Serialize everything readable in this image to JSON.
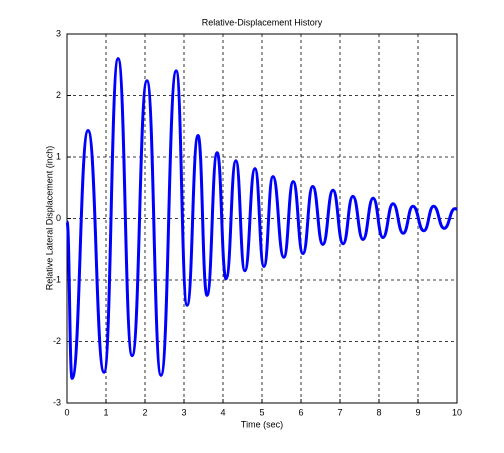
{
  "chart_data": {
    "type": "line",
    "title": "Relative-Displacement History",
    "x_label": "Time (sec)",
    "y_label": "Relative Lateral Displacement (inch)",
    "xlim": [
      0,
      10
    ],
    "xticks": [
      0,
      1,
      2,
      3,
      4,
      5,
      6,
      7,
      8,
      9,
      10
    ],
    "ylim": [
      -3,
      3
    ],
    "yticks": [
      -3,
      -2,
      -1,
      0,
      1,
      2,
      3
    ],
    "grid": true,
    "series": [
      {
        "color": "#0000ff",
        "x": [
          0,
          0.13,
          0.54,
          0.95,
          1.31,
          1.67,
          2.05,
          2.41,
          2.8,
          3.08,
          3.36,
          3.59,
          3.85,
          4.08,
          4.33,
          4.56,
          4.82,
          5.05,
          5.28,
          5.56,
          5.8,
          6.05,
          6.3,
          6.56,
          6.82,
          7.08,
          7.33,
          7.59,
          7.85,
          8.1,
          8.36,
          8.62,
          8.87,
          9.15,
          9.4,
          9.67,
          9.95,
          10
        ],
        "values": [
          -0.05,
          -2.6,
          1.43,
          -2.5,
          2.6,
          -2.23,
          2.24,
          -2.55,
          2.4,
          -1.41,
          1.35,
          -1.25,
          1.07,
          -0.98,
          0.94,
          -0.85,
          0.81,
          -0.78,
          0.68,
          -0.63,
          0.6,
          -0.57,
          0.52,
          -0.42,
          0.46,
          -0.41,
          0.36,
          -0.34,
          0.33,
          -0.31,
          0.24,
          -0.24,
          0.2,
          -0.2,
          0.2,
          -0.16,
          0.16,
          0.15
        ]
      }
    ]
  }
}
